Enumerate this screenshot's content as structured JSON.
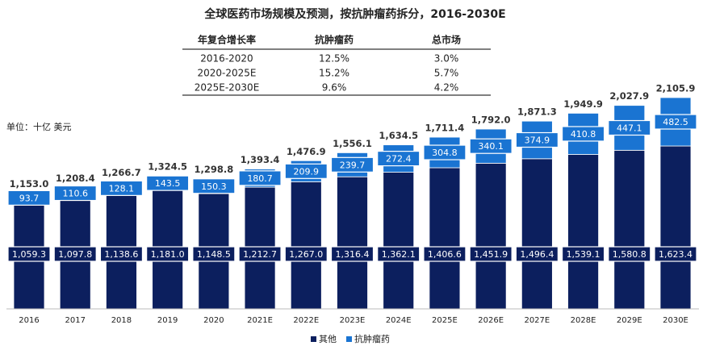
{
  "chart_data": {
    "type": "stacked_bar",
    "title": "全球医药市场规模及预测，按抗肿瘤药拆分，2016-2030E",
    "unit": "单位：十亿 美元",
    "table": {
      "header": [
        "年复合增长率",
        "抗肿瘤药",
        "总市场"
      ],
      "rows": [
        [
          "2016-2020",
          "12.5%",
          "3.0%"
        ],
        [
          "2020-2025E",
          "15.2%",
          "5.7%"
        ],
        [
          "2025E-2030E",
          "9.6%",
          "4.2%"
        ]
      ]
    },
    "categories": [
      "2016",
      "2017",
      "2018",
      "2019",
      "2020",
      "2021E",
      "2022E",
      "2023E",
      "2024E",
      "2025E",
      "2026E",
      "2027E",
      "2028E",
      "2029E",
      "2030E"
    ],
    "series": [
      {
        "name": "其他",
        "color": "#0c1f5e",
        "values": [
          1059.3,
          1097.8,
          1138.6,
          1181.0,
          1148.5,
          1212.7,
          1267.0,
          1316.4,
          1362.1,
          1406.6,
          1451.9,
          1496.4,
          1539.1,
          1580.8,
          1623.4
        ],
        "value_labels": [
          "1,059.3",
          "1,097.8",
          "1,138.6",
          "1,181.0",
          "1,148.5",
          "1,212.7",
          "1,267.0",
          "1,316.4",
          "1,362.1",
          "1,406.6",
          "1,451.9",
          "1,496.4",
          "1,539.1",
          "1,580.8",
          "1,623.4"
        ]
      },
      {
        "name": "抗肿瘤药",
        "color": "#1a74d2",
        "values": [
          93.7,
          110.6,
          128.1,
          143.5,
          150.3,
          180.7,
          209.9,
          239.7,
          272.4,
          304.8,
          340.1,
          374.9,
          410.8,
          447.1,
          482.5
        ]
      }
    ],
    "totals": [
      1153.0,
      1208.4,
      1266.7,
      1324.5,
      1298.8,
      1393.4,
      1476.9,
      1556.1,
      1634.5,
      1711.4,
      1792.0,
      1871.3,
      1949.9,
      2027.9,
      2105.9
    ],
    "total_labels": [
      "1,153.0",
      "1,208.4",
      "1,266.7",
      "1,324.5",
      "1,298.8",
      "1,393.4",
      "1,476.9",
      "1,556.1",
      "1,634.5",
      "1,711.4",
      "1,792.0",
      "1,871.3",
      "1,949.9",
      "2,027.9",
      "2,105.9"
    ]
  }
}
